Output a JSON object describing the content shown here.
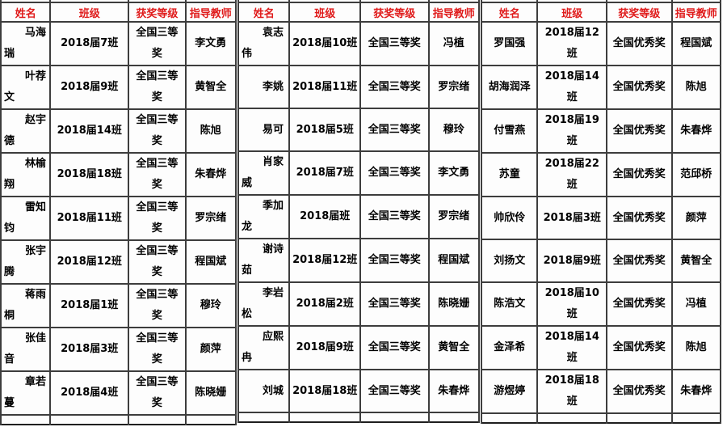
{
  "page": {
    "background_color": "#ffffff",
    "header_text_color": "#e01b1b",
    "cell_text_color": "#000000",
    "border_color": "#3d3d3d"
  },
  "table": {
    "columns": [
      "姓名",
      "班级",
      "获奖等级",
      "指导教师"
    ],
    "column_keys": [
      "name",
      "class",
      "award",
      "teacher"
    ],
    "groups": [
      {
        "rows": [
          [
            "马海瑞",
            "2018届7班",
            "全国三等奖",
            "李文勇"
          ],
          [
            "叶荐文",
            "2018届9班",
            "全国三等奖",
            "黄智全"
          ],
          [
            "赵宇德",
            "2018届14班",
            "全国三等奖",
            "陈旭"
          ],
          [
            "林榆翔",
            "2018届18班",
            "全国三等奖",
            "朱春烨"
          ],
          [
            "雷知钧",
            "2018届11班",
            "全国三等奖",
            "罗宗绪"
          ],
          [
            "张宇腾",
            "2018届12班",
            "全国三等奖",
            "程国斌"
          ],
          [
            "蒋雨桐",
            "2018届1班",
            "全国三等奖",
            "穆玲"
          ],
          [
            "张佳音",
            "2018届3班",
            "全国三等奖",
            "颜萍"
          ],
          [
            "章若蔓",
            "2018届4班",
            "全国三等奖",
            "陈晓姗"
          ]
        ]
      },
      {
        "rows": [
          [
            "袁志伟",
            "2018届10班",
            "全国三等奖",
            "冯植"
          ],
          [
            "李姚",
            "2018届11班",
            "全国三等奖",
            "罗宗绪"
          ],
          [
            "易可",
            "2018届5班",
            "全国三等奖",
            "穆玲"
          ],
          [
            "肖家威",
            "2018届7班",
            "全国三等奖",
            "李文勇"
          ],
          [
            "季加龙",
            "2018届班",
            "全国三等奖",
            "罗宗绪"
          ],
          [
            "谢诗茹",
            "2018届12班",
            "全国三等奖",
            "程国斌"
          ],
          [
            "李岩松",
            "2018届2班",
            "全国三等奖",
            "陈晓姗"
          ],
          [
            "应熙冉",
            "2018届9班",
            "全国三等奖",
            "黄智全"
          ],
          [
            "刘城",
            "2018届18班",
            "全国三等奖",
            "朱春烨"
          ]
        ]
      },
      {
        "rows": [
          [
            "罗国强",
            "2018届12班",
            "全国优秀奖",
            "程国斌"
          ],
          [
            "胡海润泽",
            "2018届14班",
            "全国优秀奖",
            "陈旭"
          ],
          [
            "付雪燕",
            "2018届19班",
            "全国优秀奖",
            "朱春烨"
          ],
          [
            "苏童",
            "2018届22班",
            "全国优秀奖",
            "范邱桥"
          ],
          [
            "帅欣伶",
            "2018届3班",
            "全国优秀奖",
            "颜萍"
          ],
          [
            "刘扬文",
            "2018届9班",
            "全国优秀奖",
            "黄智全"
          ],
          [
            "陈浩文",
            "2018届10班",
            "全国优秀奖",
            "冯植"
          ],
          [
            "金泽希",
            "2018届14班",
            "全国优秀奖",
            "陈旭"
          ],
          [
            "游煜婷",
            "2018届18班",
            "全国优秀奖",
            "朱春烨"
          ]
        ]
      }
    ]
  }
}
